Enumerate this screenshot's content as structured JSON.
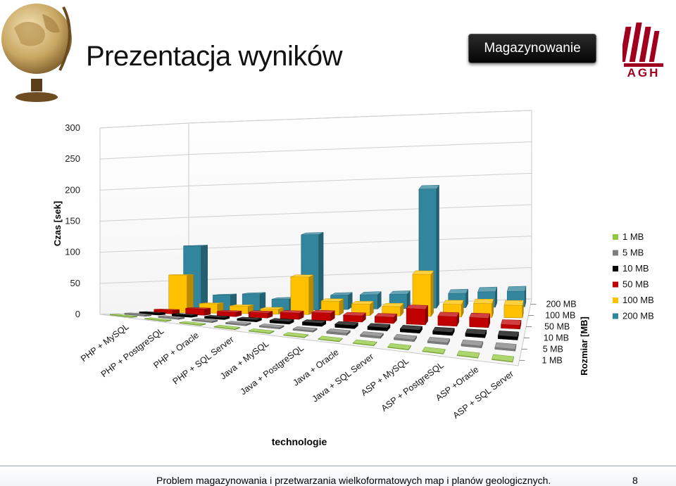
{
  "slide": {
    "title": "Prezentacja wyników",
    "badge": "Magazynowanie",
    "logo_text": "AGH",
    "footer": "Problem magazynowania i przetwarzania wielkoformatowych map i planów geologicznych.",
    "page_number": "8"
  },
  "chart_data": {
    "type": "bar",
    "subtype": "3d-column",
    "title": "",
    "xlabel": "technologie",
    "ylabel": "Czas [sek]",
    "zlabel": "Rozmiar [MB]",
    "ylim": [
      0,
      300
    ],
    "yticks": [
      "0",
      "50",
      "100",
      "150",
      "200",
      "250",
      "300"
    ],
    "grid": true,
    "legend_position": "right",
    "categories": [
      "PHP + MySQL",
      "PHP + PostgreSQL",
      "PHP + Oracle",
      "PHP + SQL Server",
      "Java + MySQL",
      "Java + PostgreSQL",
      "Java + Oracle",
      "Java + SQL Server",
      "ASP + MySQL",
      "ASP + PostgreSQL",
      "ASP +Oracle",
      "ASP + SQL Server"
    ],
    "depth_labels": [
      "1 MB",
      "5 MB",
      "10 MB",
      "50 MB",
      "100 MB",
      "200 MB"
    ],
    "series": [
      {
        "name": "1 MB",
        "color": "#92c83e",
        "values": [
          1,
          1,
          1,
          1,
          1,
          1,
          1,
          1,
          1,
          1,
          1,
          1
        ]
      },
      {
        "name": "5 MB",
        "color": "#7f7f7f",
        "values": [
          2,
          2,
          2,
          2,
          2,
          2,
          3,
          3,
          3,
          3,
          3,
          3
        ]
      },
      {
        "name": "10 MB",
        "color": "#000000",
        "values": [
          3,
          3,
          3,
          3,
          4,
          5,
          5,
          5,
          5,
          5,
          5,
          5
        ]
      },
      {
        "name": "50 MB",
        "color": "#c00000",
        "values": [
          6,
          10,
          7,
          8,
          10,
          12,
          10,
          10,
          25,
          15,
          15,
          6
        ]
      },
      {
        "name": "100 MB",
        "color": "#ffc000",
        "values": [
          60,
          15,
          12,
          8,
          60,
          22,
          18,
          15,
          67,
          20,
          22,
          20
        ]
      },
      {
        "name": "200 MB",
        "color": "#31859c",
        "values": [
          105,
          26,
          27,
          18,
          120,
          23,
          23,
          23,
          190,
          23,
          25,
          25
        ]
      }
    ]
  }
}
